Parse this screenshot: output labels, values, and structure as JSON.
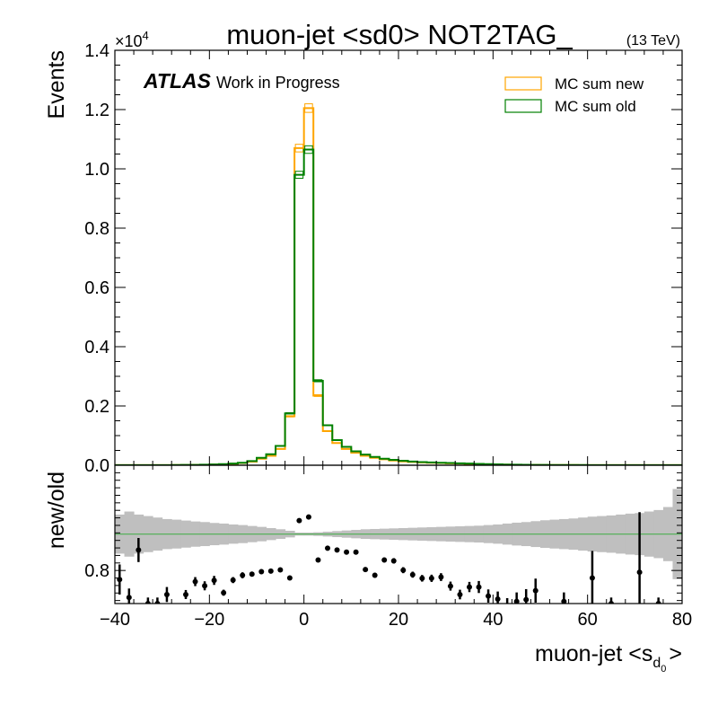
{
  "chart_data": [
    {
      "type": "line",
      "panel": "main",
      "title": "muon-jet <sd0> NOT2TAG_",
      "energy": "(13 TeV)",
      "atlas_label": "ATLAS",
      "atlas_sublabel": "Work in Progress",
      "ylabel": "Events",
      "y_multiplier": "×10",
      "y_multiplier_exp": "4",
      "xlim": [
        -40,
        80
      ],
      "ylim": [
        0,
        1.4
      ],
      "x_ticks": [
        -40,
        -20,
        0,
        20,
        40,
        60,
        80
      ],
      "y_ticks": [
        "0.0",
        "0.2",
        "0.4",
        "0.6",
        "0.8",
        "1.0",
        "1.2",
        "1.4"
      ],
      "legend_position": "top-right",
      "bin_edges": [
        -40,
        -38,
        -36,
        -34,
        -32,
        -30,
        -28,
        -26,
        -24,
        -22,
        -20,
        -18,
        -16,
        -14,
        -12,
        -10,
        -8,
        -6,
        -4,
        -2,
        0,
        2,
        4,
        6,
        8,
        10,
        12,
        14,
        16,
        18,
        20,
        22,
        24,
        26,
        28,
        30,
        32,
        34,
        36,
        38,
        40,
        42,
        44,
        46,
        48,
        50,
        52,
        54,
        56,
        58,
        60,
        62,
        64,
        66,
        68,
        70,
        72,
        74,
        76,
        78,
        80
      ],
      "series": [
        {
          "name": "MC sum new",
          "color": "#ffa500",
          "values": [
            0.0002,
            0.0002,
            0.0003,
            0.0003,
            0.0004,
            0.0005,
            0.0007,
            0.0009,
            0.0012,
            0.0016,
            0.0022,
            0.0032,
            0.0048,
            0.0075,
            0.012,
            0.022,
            0.032,
            0.055,
            0.165,
            1.07,
            1.205,
            0.235,
            0.115,
            0.075,
            0.055,
            0.042,
            0.032,
            0.025,
            0.02,
            0.016,
            0.013,
            0.011,
            0.0095,
            0.0085,
            0.0075,
            0.0065,
            0.0055,
            0.0046,
            0.0038,
            0.0031,
            0.0025,
            0.002,
            0.0016,
            0.0013,
            0.0011,
            0.0009,
            0.0008,
            0.0007,
            0.0006,
            0.0005,
            0.0004,
            0.0004,
            0.0003,
            0.0003,
            0.0002,
            0.0002,
            0.0002,
            0.0002,
            0.0002,
            0.0002
          ]
        },
        {
          "name": "MC sum old",
          "color": "#008000",
          "values": [
            0.0002,
            0.0002,
            0.0003,
            0.0003,
            0.0004,
            0.0005,
            0.0007,
            0.001,
            0.0013,
            0.0018,
            0.0025,
            0.0037,
            0.0055,
            0.0085,
            0.014,
            0.025,
            0.037,
            0.065,
            0.175,
            0.98,
            1.065,
            0.285,
            0.135,
            0.085,
            0.062,
            0.047,
            0.036,
            0.028,
            0.022,
            0.018,
            0.015,
            0.0125,
            0.0105,
            0.0095,
            0.0085,
            0.0075,
            0.0065,
            0.0055,
            0.0045,
            0.0037,
            0.003,
            0.0024,
            0.0019,
            0.0016,
            0.0013,
            0.0011,
            0.0009,
            0.0008,
            0.0007,
            0.0006,
            0.0005,
            0.0004,
            0.0004,
            0.0003,
            0.0003,
            0.0003,
            0.0002,
            0.0002,
            0.0002,
            0.0002
          ]
        }
      ]
    },
    {
      "type": "scatter",
      "panel": "ratio",
      "ylabel": "new/old",
      "xlabel_main": "muon-jet <s",
      "xlabel_sub": "d",
      "xlabel_subsub": "0",
      "xlabel_end": ">",
      "xlim": [
        -40,
        80
      ],
      "ylim": [
        0.69,
        1.15
      ],
      "y_ticks": [
        "0.8"
      ],
      "y_tick_values": [
        0.8
      ],
      "reference_line": 0.921,
      "reference_color": "#4caf50",
      "band_color": "#bfbfbf",
      "band": {
        "x": [
          -40,
          -38,
          -36,
          -34,
          -32,
          -30,
          -28,
          -26,
          -24,
          -22,
          -20,
          -18,
          -16,
          -14,
          -12,
          -10,
          -8,
          -6,
          -4,
          -2,
          0,
          2,
          4,
          6,
          8,
          10,
          12,
          14,
          16,
          18,
          20,
          22,
          24,
          26,
          28,
          30,
          32,
          34,
          36,
          38,
          40,
          42,
          44,
          46,
          48,
          50,
          52,
          54,
          56,
          58,
          60,
          62,
          64,
          66,
          68,
          70,
          72,
          74,
          76,
          78
        ],
        "hw": [
          0.065,
          0.075,
          0.065,
          0.06,
          0.055,
          0.05,
          0.048,
          0.045,
          0.042,
          0.04,
          0.037,
          0.035,
          0.032,
          0.03,
          0.027,
          0.024,
          0.02,
          0.016,
          0.011,
          0.005,
          0.005,
          0.006,
          0.008,
          0.01,
          0.012,
          0.014,
          0.016,
          0.017,
          0.018,
          0.019,
          0.02,
          0.021,
          0.022,
          0.023,
          0.024,
          0.025,
          0.026,
          0.027,
          0.028,
          0.03,
          0.032,
          0.035,
          0.038,
          0.04,
          0.043,
          0.046,
          0.048,
          0.05,
          0.052,
          0.055,
          0.058,
          0.06,
          0.062,
          0.065,
          0.068,
          0.07,
          0.075,
          0.08,
          0.09,
          0.15
        ]
      },
      "points": [
        {
          "x": -39,
          "y": 0.77,
          "err": 0.05
        },
        {
          "x": -37,
          "y": 0.71,
          "err": 0.03
        },
        {
          "x": -35,
          "y": 0.868,
          "err": 0.04
        },
        {
          "x": -33,
          "y": 0.69,
          "err": 0.02
        },
        {
          "x": -31,
          "y": 0.69,
          "err": 0.02
        },
        {
          "x": -29,
          "y": 0.72,
          "err": 0.025
        },
        {
          "x": -25,
          "y": 0.72,
          "err": 0.015
        },
        {
          "x": -23,
          "y": 0.763,
          "err": 0.015
        },
        {
          "x": -21,
          "y": 0.749,
          "err": 0.015
        },
        {
          "x": -19,
          "y": 0.767,
          "err": 0.015
        },
        {
          "x": -17,
          "y": 0.726,
          "err": 0.01
        },
        {
          "x": -15,
          "y": 0.768,
          "err": 0.01
        },
        {
          "x": -13,
          "y": 0.784,
          "err": 0.01
        },
        {
          "x": -11,
          "y": 0.788,
          "err": 0.008
        },
        {
          "x": -9,
          "y": 0.796,
          "err": 0.008
        },
        {
          "x": -7,
          "y": 0.798,
          "err": 0.006
        },
        {
          "x": -5,
          "y": 0.802,
          "err": 0.005
        },
        {
          "x": -3,
          "y": 0.775,
          "err": 0.004
        },
        {
          "x": -1,
          "y": 0.966,
          "err": 0.004
        },
        {
          "x": 1,
          "y": 0.978,
          "err": 0.004
        },
        {
          "x": 3,
          "y": 0.835,
          "err": 0.004
        },
        {
          "x": 5,
          "y": 0.874,
          "err": 0.005
        },
        {
          "x": 7,
          "y": 0.868,
          "err": 0.005
        },
        {
          "x": 9,
          "y": 0.861,
          "err": 0.006
        },
        {
          "x": 11,
          "y": 0.861,
          "err": 0.006
        },
        {
          "x": 13,
          "y": 0.803,
          "err": 0.007
        },
        {
          "x": 15,
          "y": 0.784,
          "err": 0.008
        },
        {
          "x": 17,
          "y": 0.835,
          "err": 0.008
        },
        {
          "x": 19,
          "y": 0.832,
          "err": 0.009
        },
        {
          "x": 21,
          "y": 0.801,
          "err": 0.01
        },
        {
          "x": 23,
          "y": 0.786,
          "err": 0.01
        },
        {
          "x": 25,
          "y": 0.774,
          "err": 0.011
        },
        {
          "x": 27,
          "y": 0.774,
          "err": 0.012
        },
        {
          "x": 29,
          "y": 0.778,
          "err": 0.013
        },
        {
          "x": 31,
          "y": 0.748,
          "err": 0.015
        },
        {
          "x": 33,
          "y": 0.72,
          "err": 0.016
        },
        {
          "x": 35,
          "y": 0.745,
          "err": 0.017
        },
        {
          "x": 37,
          "y": 0.745,
          "err": 0.02
        },
        {
          "x": 39,
          "y": 0.715,
          "err": 0.022
        },
        {
          "x": 41,
          "y": 0.705,
          "err": 0.025
        },
        {
          "x": 43,
          "y": 0.68,
          "err": 0.028
        },
        {
          "x": 45,
          "y": 0.697,
          "err": 0.03
        },
        {
          "x": 47,
          "y": 0.703,
          "err": 0.035
        },
        {
          "x": 49,
          "y": 0.733,
          "err": 0.04
        },
        {
          "x": 55,
          "y": 0.697,
          "err": 0.03
        },
        {
          "x": 61,
          "y": 0.775,
          "err": 0.09
        },
        {
          "x": 65,
          "y": 0.69,
          "err": 0.02
        },
        {
          "x": 71,
          "y": 0.794,
          "err": 0.2
        },
        {
          "x": 75,
          "y": 0.69,
          "err": 0.02
        }
      ]
    }
  ]
}
